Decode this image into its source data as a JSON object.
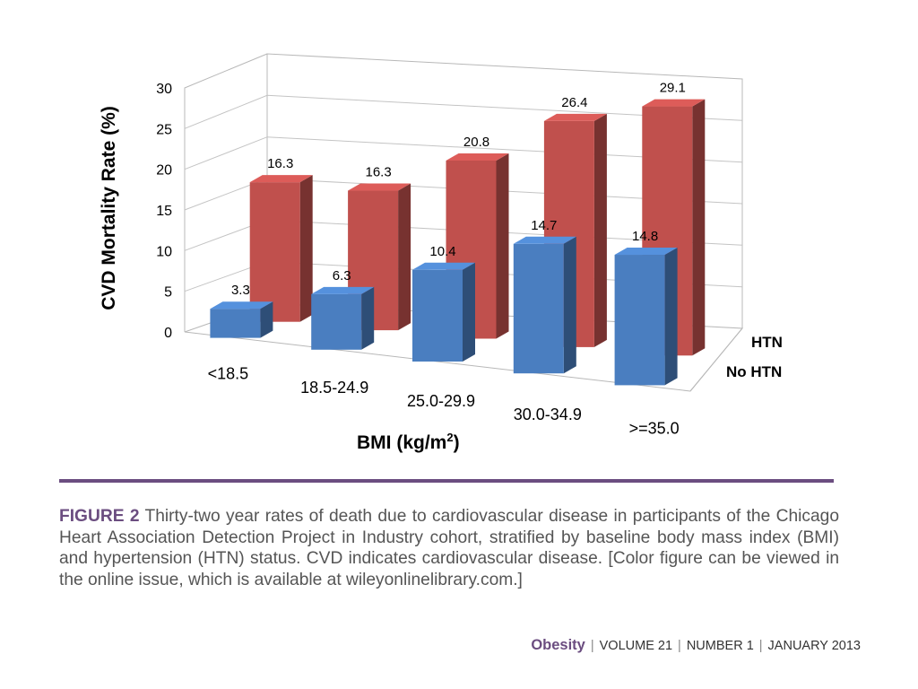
{
  "chart_data": {
    "type": "bar",
    "subtype": "3d-clustered-column",
    "categories": [
      "<18.5",
      "18.5-24.9",
      "25.0-29.9",
      "30.0-34.9",
      ">=35.0"
    ],
    "series": [
      {
        "name": "No HTN",
        "color": "#4a7ec0",
        "values": [
          3.3,
          6.3,
          10.4,
          14.7,
          14.8
        ]
      },
      {
        "name": "HTN",
        "color": "#c0504d",
        "values": [
          16.3,
          16.3,
          20.8,
          26.4,
          29.1
        ]
      }
    ],
    "ylabel": "CVD Mortality Rate (%)",
    "xlabel_main": "BMI (kg/m",
    "xlabel_sup": "2",
    "xlabel_end": ")",
    "ylim": [
      0,
      30
    ],
    "yticks": [
      0,
      5,
      10,
      15,
      20,
      25,
      30
    ],
    "grid": true,
    "legend": "depth-axis-right"
  },
  "caption": {
    "label": "FIGURE 2",
    "text": " Thirty-two year rates of death due to cardiovascular disease in participants of the Chicago Heart Association Detection Project in Industry cohort, stratified by baseline body mass index (BMI) and hypertension (HTN) status. CVD indicates cardiovascular disease. [Color figure can be viewed in the online issue, which is available at wileyonlinelibrary.com.]"
  },
  "footer": {
    "journal": "Obesity",
    "volume": "VOLUME 21",
    "number": "NUMBER 1",
    "date": "JANUARY 2013",
    "separator": "|"
  }
}
